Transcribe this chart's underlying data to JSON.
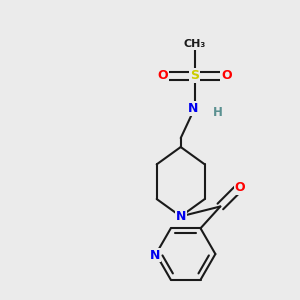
{
  "background_color": "#ebebeb",
  "bond_color": "#1a1a1a",
  "atom_colors": {
    "N": "#0000ee",
    "O": "#ff0000",
    "S": "#cccc00",
    "H": "#5a9090",
    "C": "#1a1a1a"
  },
  "figsize": [
    3.0,
    3.0
  ],
  "dpi": 100
}
